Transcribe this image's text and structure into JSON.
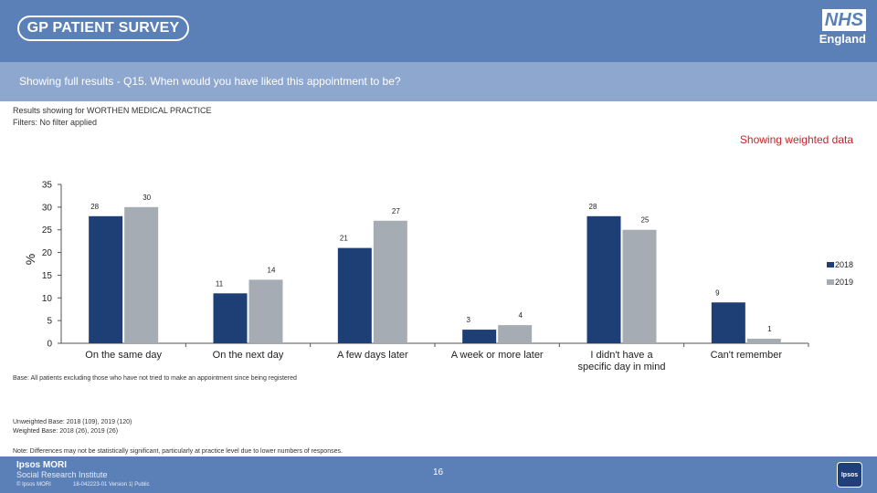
{
  "header": {
    "survey_logo_text": "GP PATIENT SURVEY",
    "nhs_logo": "NHS",
    "nhs_region": "England"
  },
  "subheader": {
    "question": "Showing full results - Q15.  When would you have liked this   appointment to be?"
  },
  "info": {
    "results_for": "Results showing for WORTHEN MEDICAL PRACTICE",
    "filters": "Filters: No filter applied",
    "weighted_label": "Showing weighted data"
  },
  "chart_data": {
    "type": "bar",
    "ylabel": "%",
    "xlabel": "",
    "ylim": [
      0,
      35
    ],
    "yticks": [
      0,
      5,
      10,
      15,
      20,
      25,
      30,
      35
    ],
    "categories": [
      "On the same day",
      "On the next day",
      "A few days later",
      "A week or more later",
      "I didn't have a specific day in mind",
      "Can't remember"
    ],
    "series": [
      {
        "name": "2018",
        "color": "#1d3f75",
        "values": [
          28,
          11,
          21,
          3,
          28,
          9
        ]
      },
      {
        "name": "2019",
        "color": "#a6acb3",
        "values": [
          30,
          14,
          27,
          4,
          25,
          1
        ]
      }
    ],
    "legend_position": "right"
  },
  "notes": {
    "base": "Base: All patients excluding those who have not tried to make an appointment since being registered",
    "unweighted": "Unweighted Base: 2018 (109), 2019 (120)",
    "weighted": "Weighted Base: 2018 (26), 2019 (26)",
    "note": "Note: Differences may not be statistically significant, particularly at practice level due to lower numbers of responses."
  },
  "footer": {
    "ipsos_name": "Ipsos MORI",
    "ipsos_sub": "Social Research Institute",
    "copyright": "© Ipsos MORI",
    "job_number": "18-042223-01 Version 1| Public",
    "page_number": "16",
    "badge": "Ipsos"
  }
}
